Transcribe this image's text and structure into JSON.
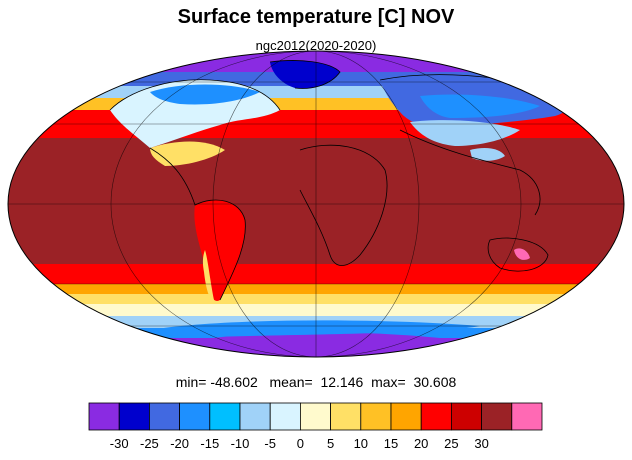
{
  "title": "Surface temperature [C] NOV",
  "subtitle": "ngc2012(2020-2020)",
  "stats": {
    "min_label": "min=",
    "min": "-48.602",
    "mean_label": "mean=",
    "mean": "12.146",
    "max_label": "max=",
    "max": "30.608"
  },
  "colorbar": {
    "colors": [
      "#8a2be2",
      "#0000cd",
      "#4169e1",
      "#1e90ff",
      "#00bfff",
      "#a0d2f8",
      "#d9f4ff",
      "#fffacd",
      "#ffe066",
      "#ffc125",
      "#ffa500",
      "#ff0000",
      "#cd0000",
      "#9b2226",
      "#ff69b4"
    ],
    "tick_labels": [
      "-30",
      "-25",
      "-20",
      "-15",
      "-10",
      "-5",
      "0",
      "5",
      "10",
      "15",
      "20",
      "25",
      "30"
    ]
  },
  "map": {
    "projection": "mollweide",
    "graticule": true,
    "coastlines": true
  }
}
